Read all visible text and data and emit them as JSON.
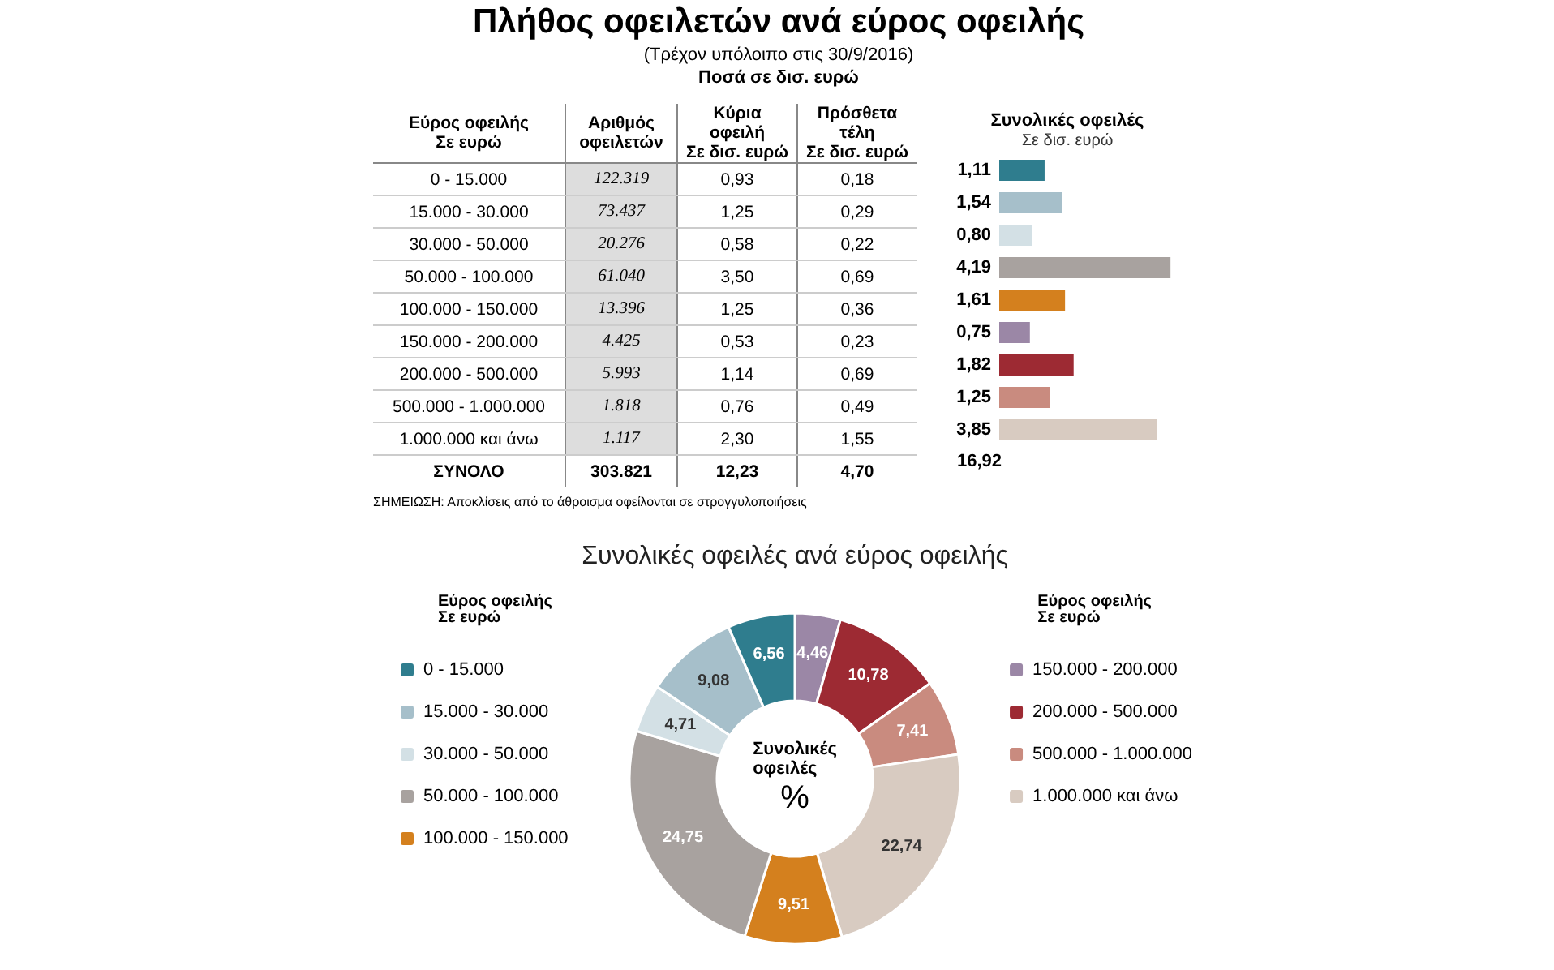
{
  "chart_data": [
    {
      "type": "other",
      "title": "Πλήθος οφειλετών ανά εύρος οφειλής",
      "subtitle": "(Τρέχον υπόλοιπο στις 30/9/2016)",
      "annotations": [
        "Ποσά σε δισ. ευρώ",
        "Εύρος οφειλής\nΣε ευρώ",
        "Αριθμός\nοφειλετών",
        "Κύρια οφειλή\nΣε δισ. ευρώ",
        "Πρόσθετα τέλη\nΣε δισ. ευρώ",
        "0 - 15.000",
        "122.319",
        "0,93",
        "0,18",
        "15.000 - 30.000",
        "73.437",
        "1,25",
        "0,29",
        "30.000 - 50.000",
        "20.276",
        "0,58",
        "0,22",
        "50.000 - 100.000",
        "61.040",
        "3,50",
        "0,69",
        "100.000 - 150.000",
        "13.396",
        "1,25",
        "0,36",
        "150.000 - 200.000",
        "4.425",
        "0,53",
        "0,23",
        "200.000 - 500.000",
        "5.993",
        "1,14",
        "0,69",
        "500.000 - 1.000.000",
        "1.818",
        "0,76",
        "0,49",
        "1.000.000 και άνω",
        "1.117",
        "2,30",
        "1,55",
        "ΣΥΝΟΛΟ",
        "303.821",
        "12,23",
        "4,70",
        "ΣΗΜΕΙΩΣΗ: Αποκλίσεις από το άθροισμα οφείλονται σε στρογγυλοποιήσεις"
      ]
    },
    {
      "type": "bar",
      "orientation": "horizontal",
      "title": "Συνολικές οφειλές",
      "subtitle": "Σε δισ. ευρώ",
      "categories": [
        null,
        null,
        null,
        null,
        null,
        null,
        null,
        null,
        null
      ],
      "values": [
        1.11,
        1.54,
        0.8,
        4.19,
        1.61,
        0.75,
        1.82,
        1.25,
        3.85
      ],
      "colors": [
        "#2f7d8e",
        "#a6bfca",
        "#d3e0e5",
        "#a8a29f",
        "#d4801e",
        "#9b87a6",
        "#9d2a33",
        "#c98b7f",
        "#d8cbc1"
      ],
      "value_labels": [
        "1,11",
        "1,54",
        "0,80",
        "4,19",
        "1,61",
        "0,75",
        "1,82",
        "1,25",
        "3,85"
      ],
      "annotations": [
        "16,92"
      ]
    },
    {
      "type": "donut",
      "title": "Συνολικές οφειλές ανά εύρος οφειλής",
      "legend_title": "Εύρος οφειλής\nΣε ευρώ",
      "legend": "left right",
      "categories": [
        "150.000 - 200.000",
        "200.000 - 500.000",
        "500.000 - 1.000.000",
        "1.000.000 και άνω",
        "100.000 - 150.000",
        "50.000 - 100.000",
        "30.000 - 50.000",
        "15.000 - 30.000",
        "0 - 15.000"
      ],
      "values": [
        4.46,
        10.78,
        7.41,
        22.74,
        9.51,
        24.75,
        4.71,
        9.08,
        6.56
      ],
      "colors": [
        "#9b87a6",
        "#9d2a33",
        "#c98b7f",
        "#d8cbc1",
        "#d4801e",
        "#a8a29f",
        "#d3e0e5",
        "#a6bfca",
        "#2f7d8e"
      ],
      "value_labels": [
        "4,46",
        "10,78",
        "7,41",
        "22,74",
        "9,51",
        "24,75",
        "4,71",
        "9,08",
        "6,56"
      ],
      "annotations": [
        "Συνολικές\nοφειλές",
        "%"
      ]
    }
  ]
}
